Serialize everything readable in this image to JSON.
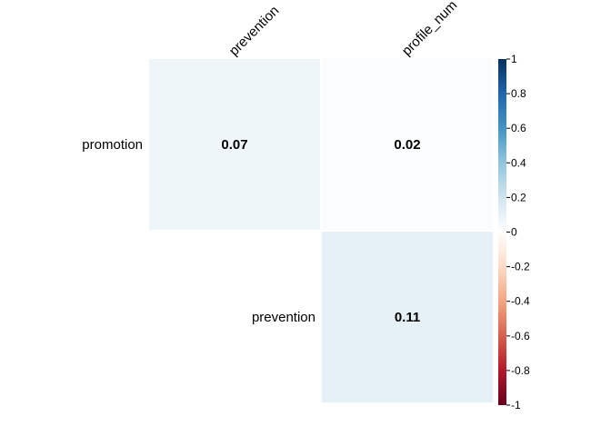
{
  "chart_data": {
    "type": "heatmap",
    "rows": [
      "promotion",
      "prevention"
    ],
    "columns": [
      "prevention",
      "profile_num"
    ],
    "values": [
      [
        0.07,
        0.02
      ],
      [
        null,
        0.11
      ]
    ],
    "labels": [
      [
        "0.07",
        "0.02"
      ],
      [
        "",
        "0.11"
      ]
    ],
    "colorbar": {
      "range": [
        -1,
        1
      ],
      "ticks": [
        1,
        0.8,
        0.6,
        0.4,
        0.2,
        0,
        -0.2,
        -0.4,
        -0.6,
        -0.8,
        -1
      ],
      "tick_labels": [
        "1",
        "0.8",
        "0.6",
        "0.4",
        "0.2",
        "0",
        "-0.2",
        "-0.4",
        "-0.6",
        "-0.8",
        "-1"
      ],
      "colors": [
        "#67001F",
        "#B2182B",
        "#D6604D",
        "#F4A582",
        "#FDDBC7",
        "#FFFFFF",
        "#D1E5F0",
        "#92C5DE",
        "#4393C3",
        "#2166AC",
        "#053061"
      ]
    },
    "layout": "upper-triangle"
  }
}
